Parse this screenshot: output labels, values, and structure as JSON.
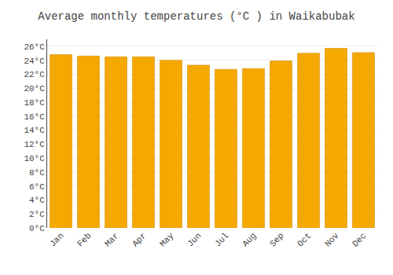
{
  "chart_data": {
    "type": "bar",
    "title": "Average monthly temperatures (°C ) in Waikabubak",
    "categories": [
      "Jan",
      "Feb",
      "Mar",
      "Apr",
      "May",
      "Jun",
      "Jul",
      "Aug",
      "Sep",
      "Oct",
      "Nov",
      "Dec"
    ],
    "values": [
      24.8,
      24.6,
      24.5,
      24.5,
      24.0,
      23.3,
      22.7,
      22.8,
      23.9,
      25.0,
      25.7,
      25.1
    ],
    "color": "#F5A800",
    "ylim": [
      0,
      27
    ],
    "yticks": [
      {
        "value": 0,
        "label": "0°C"
      },
      {
        "value": 2,
        "label": "2°C"
      },
      {
        "value": 4,
        "label": "4°C"
      },
      {
        "value": 6,
        "label": "6°C"
      },
      {
        "value": 8,
        "label": "8°C"
      },
      {
        "value": 10,
        "label": "10°C"
      },
      {
        "value": 12,
        "label": "12°C"
      },
      {
        "value": 14,
        "label": "14°C"
      },
      {
        "value": 16,
        "label": "16°C"
      },
      {
        "value": 18,
        "label": "18°C"
      },
      {
        "value": 20,
        "label": "20°C"
      },
      {
        "value": 22,
        "label": "22°C"
      },
      {
        "value": 24,
        "label": "24°C"
      },
      {
        "value": 26,
        "label": "26°C"
      }
    ],
    "grid": true
  }
}
